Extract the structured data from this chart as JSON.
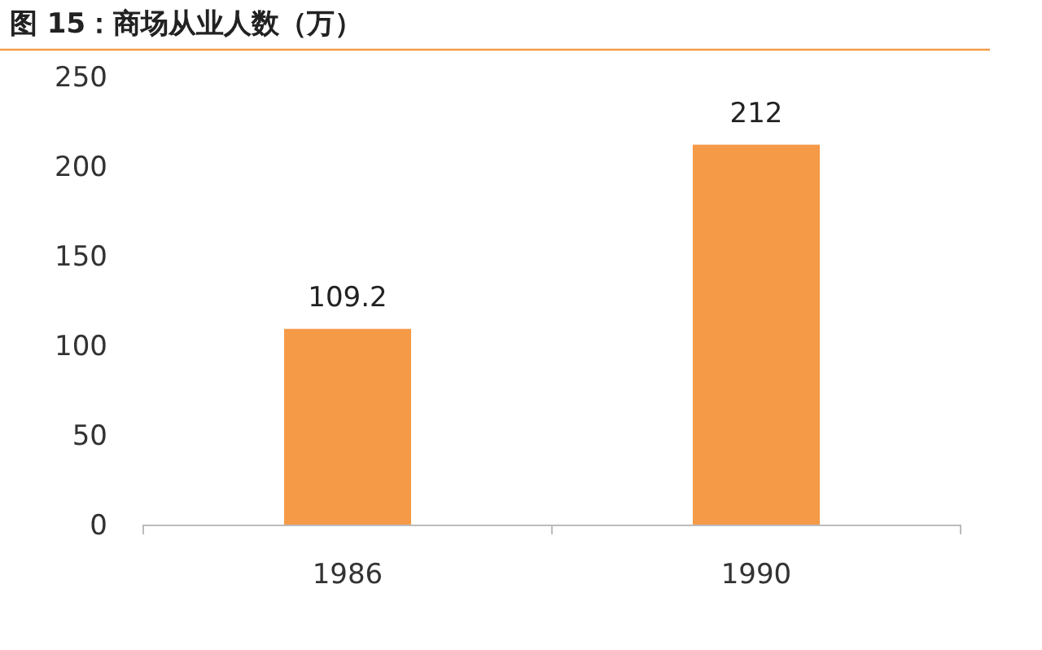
{
  "chart_data": {
    "type": "bar",
    "title": "图 15：商场从业人数（万）",
    "categories": [
      "1986",
      "1990"
    ],
    "values": [
      109.2,
      212
    ],
    "color": "#f59a47",
    "ylim": [
      0,
      250
    ],
    "yticks": [
      0,
      50,
      100,
      150,
      200,
      250
    ],
    "data_labels": true
  }
}
